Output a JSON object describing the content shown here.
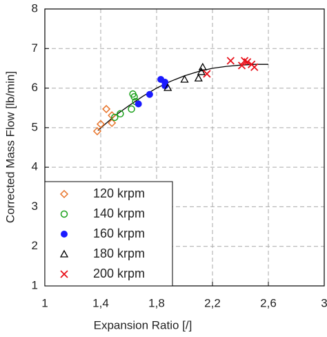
{
  "chart_data": {
    "type": "scatter",
    "x_label": "Expansion Ratio [/]",
    "y_label": "Corrected Mass Flow [lb/min]",
    "xlim": [
      1,
      3
    ],
    "ylim": [
      1,
      8
    ],
    "xticks": [
      1,
      {
        "value": 1.4,
        "label": "1,4"
      },
      {
        "value": 1.8,
        "label": "1,8"
      },
      {
        "value": 2.2,
        "label": "2,2"
      },
      {
        "value": 2.6,
        "label": "2,6"
      },
      3
    ],
    "yticks": [
      1,
      2,
      3,
      4,
      5,
      6,
      7,
      8
    ],
    "grid": true,
    "legend": "lower left",
    "series": [
      {
        "name": "120 krpm",
        "color": "#e8742a",
        "marker": "diamond",
        "x": [
          1.375,
          1.4,
          1.44,
          1.48,
          1.48
        ],
        "values": [
          4.91,
          5.09,
          5.47,
          5.31,
          5.12
        ]
      },
      {
        "name": "140 krpm",
        "color": "#1aa01a",
        "marker": "circle-open",
        "x": [
          1.5,
          1.54,
          1.62,
          1.63,
          1.64,
          1.65
        ],
        "values": [
          5.26,
          5.35,
          5.47,
          5.85,
          5.78,
          5.66
        ]
      },
      {
        "name": "160 krpm",
        "color": "#1a1aff",
        "marker": "circle",
        "x": [
          1.67,
          1.75,
          1.83,
          1.86,
          1.86
        ],
        "values": [
          5.6,
          5.84,
          6.22,
          6.15,
          6.06
        ]
      },
      {
        "name": "180 krpm",
        "color": "#000000",
        "marker": "triangle",
        "x": [
          1.88,
          2.0,
          2.1,
          2.12,
          2.13
        ],
        "values": [
          6.01,
          6.22,
          6.25,
          6.41,
          6.53
        ]
      },
      {
        "name": "200 krpm",
        "color": "#e8101a",
        "marker": "x",
        "x": [
          2.16,
          2.33,
          2.41,
          2.43,
          2.45,
          2.48,
          2.5
        ],
        "values": [
          6.36,
          6.69,
          6.57,
          6.69,
          6.66,
          6.6,
          6.53
        ]
      }
    ],
    "fit": {
      "color": "#000000",
      "x": [
        1.38,
        1.5,
        1.6,
        1.7,
        1.8,
        1.9,
        2.0,
        2.1,
        2.2,
        2.3,
        2.4,
        2.5,
        2.6
      ],
      "values": [
        4.93,
        5.3,
        5.55,
        5.79,
        6.0,
        6.17,
        6.31,
        6.42,
        6.5,
        6.55,
        6.58,
        6.6,
        6.6
      ]
    }
  }
}
